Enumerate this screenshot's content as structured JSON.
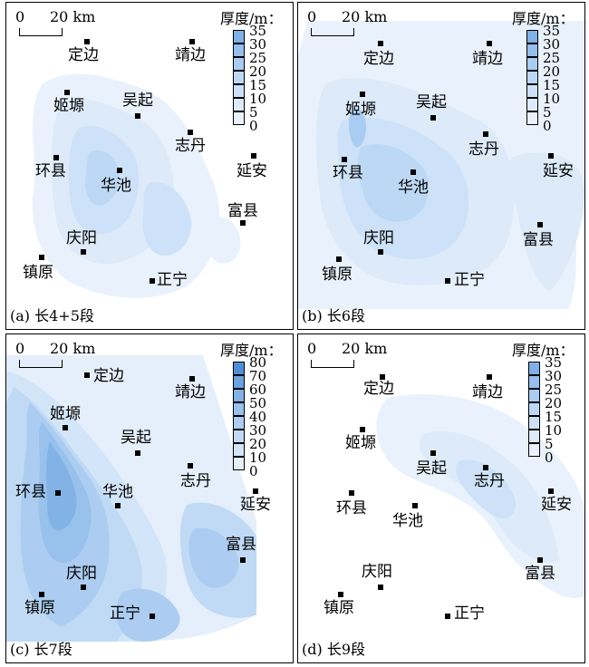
{
  "panels": [
    {
      "caption": "(a) 长4+5段",
      "legend_title": "厚度/m：",
      "legend_ticks": [
        "35",
        "30",
        "25",
        "20",
        "15",
        "10",
        "5",
        "0"
      ],
      "legend_colors": [
        "#7fb0e6",
        "#95bfee",
        "#a9ccf2",
        "#bcd8f5",
        "#cde2f8",
        "#dceaf9",
        "#e9f2fc",
        "#ffffff"
      ],
      "cities": [
        "定边",
        "靖边",
        "姬塬",
        "吴起",
        "志丹",
        "环县",
        "华池",
        "延安",
        "富县",
        "庆阳",
        "镇原",
        "正宁"
      ]
    },
    {
      "caption": "(b) 长6段",
      "legend_title": "厚度/m：",
      "legend_ticks": [
        "35",
        "30",
        "25",
        "20",
        "15",
        "10",
        "5",
        "0"
      ],
      "legend_colors": [
        "#7fb0e6",
        "#95bfee",
        "#a9ccf2",
        "#bcd8f5",
        "#cde2f8",
        "#dceaf9",
        "#e9f2fc",
        "#ffffff"
      ],
      "cities": [
        "定边",
        "靖边",
        "姬塬",
        "吴起",
        "志丹",
        "环县",
        "华池",
        "延安",
        "富县",
        "庆阳",
        "镇原",
        "正宁"
      ]
    },
    {
      "caption": "(c) 长7段",
      "legend_title": "厚度/m：",
      "legend_ticks": [
        "80",
        "70",
        "60",
        "50",
        "40",
        "30",
        "20",
        "10",
        "0"
      ],
      "legend_colors": [
        "#4f8fd9",
        "#6aa2e0",
        "#82b2e6",
        "#98c1ec",
        "#accdf1",
        "#c0daf5",
        "#d3e5f8",
        "#e5effb",
        "#ffffff"
      ],
      "cities": [
        "定边",
        "靖边",
        "姬塬",
        "吴起",
        "志丹",
        "环县",
        "华池",
        "延安",
        "富县",
        "庆阳",
        "镇原",
        "正宁"
      ]
    },
    {
      "caption": "(d) 长9段",
      "legend_title": "厚度/m：",
      "legend_ticks": [
        "35",
        "30",
        "25",
        "20",
        "15",
        "10",
        "5",
        "0"
      ],
      "legend_colors": [
        "#7fb0e6",
        "#95bfee",
        "#a9ccf2",
        "#bcd8f5",
        "#cde2f8",
        "#dceaf9",
        "#e9f2fc",
        "#ffffff"
      ],
      "cities": [
        "定边",
        "靖边",
        "姬塬",
        "吴起",
        "志丹",
        "环县",
        "华池",
        "延安",
        "富县",
        "庆阳",
        "镇原",
        "正宁"
      ]
    }
  ],
  "scale": {
    "zero": "0",
    "distance": "20 km"
  }
}
